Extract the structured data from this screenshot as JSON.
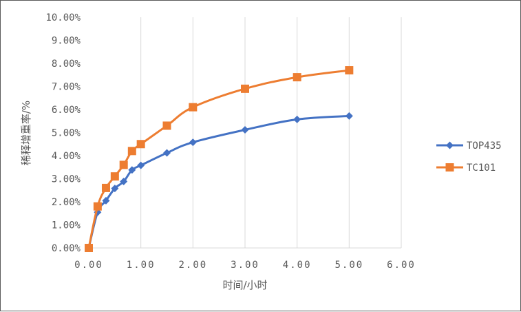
{
  "chart_data": {
    "type": "line",
    "xlabel": "时间/小时",
    "ylabel": "稀释增重率/%",
    "xlim": [
      0,
      6
    ],
    "ylim": [
      0,
      10
    ],
    "x_ticks": [
      "0.00",
      "1.00",
      "2.00",
      "3.00",
      "4.00",
      "5.00",
      "6.00"
    ],
    "y_ticks": [
      "0.00%",
      "1.00%",
      "2.00%",
      "3.00%",
      "4.00%",
      "5.00%",
      "6.00%",
      "7.00%",
      "8.00%",
      "9.00%",
      "10.00%"
    ],
    "grid": "vertical",
    "legend_position": "right",
    "series": [
      {
        "name": "TOP435",
        "color": "#4472C4",
        "marker": "diamond",
        "x": [
          0,
          0.17,
          0.33,
          0.5,
          0.67,
          0.83,
          1.0,
          1.5,
          2.0,
          3.0,
          4.0,
          5.0
        ],
        "values": [
          0.0,
          1.55,
          2.05,
          2.58,
          2.88,
          3.38,
          3.58,
          4.12,
          4.58,
          5.12,
          5.57,
          5.72
        ]
      },
      {
        "name": "TC101",
        "color": "#ED7D31",
        "marker": "square",
        "x": [
          0,
          0.17,
          0.33,
          0.5,
          0.67,
          0.83,
          1.0,
          1.5,
          2.0,
          3.0,
          4.0,
          5.0
        ],
        "values": [
          0.0,
          1.8,
          2.6,
          3.1,
          3.6,
          4.2,
          4.5,
          5.3,
          6.1,
          6.9,
          7.4,
          7.7
        ]
      }
    ]
  }
}
